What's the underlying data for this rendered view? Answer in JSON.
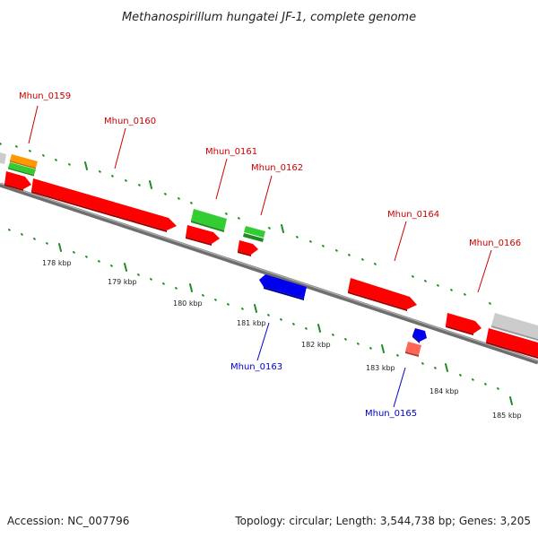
{
  "title": "Methanospirillum hungatei JF-1, complete genome",
  "footer": {
    "accession": "Accession: NC_007796",
    "summary": "Topology: circular; Length: 3,544,738 bp; Genes: 3,205"
  },
  "colors": {
    "forward_gene": "#ff0000",
    "reverse_gene": "#0000ff",
    "green_feature": "#33cc33",
    "orange_feature": "#ff9900",
    "grey_feature": "#cccccc",
    "backbone": "#777777",
    "ticks": "#228b22"
  },
  "gene_labels": [
    {
      "text": "Mhun_0159",
      "strand": "forward"
    },
    {
      "text": "Mhun_0160",
      "strand": "forward"
    },
    {
      "text": "Mhun_0161",
      "strand": "forward"
    },
    {
      "text": "Mhun_0162",
      "strand": "forward"
    },
    {
      "text": "Mhun_0163",
      "strand": "reverse"
    },
    {
      "text": "Mhun_0164",
      "strand": "forward"
    },
    {
      "text": "Mhun_0165",
      "strand": "reverse"
    },
    {
      "text": "Mhun_0166",
      "strand": "forward"
    }
  ],
  "scale_labels": [
    "178 kbp",
    "179 kbp",
    "180 kbp",
    "181 kbp",
    "182 kbp",
    "183 kbp",
    "184 kbp",
    "185 kbp"
  ]
}
